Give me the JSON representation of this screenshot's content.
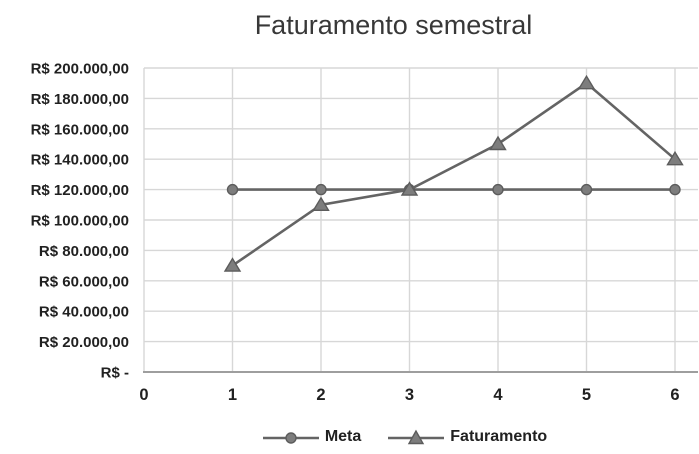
{
  "chart_data": {
    "type": "line",
    "title": "Faturamento semestral",
    "categories": [
      1,
      2,
      3,
      4,
      5,
      6
    ],
    "series": [
      {
        "name": "Meta",
        "marker": "circle",
        "values": [
          120000,
          120000,
          120000,
          120000,
          120000,
          120000
        ]
      },
      {
        "name": "Faturamento",
        "marker": "triangle",
        "values": [
          70000,
          110000,
          120000,
          150000,
          190000,
          140000
        ]
      }
    ],
    "xlabel": "",
    "ylabel": "",
    "xlim": [
      0,
      6
    ],
    "ylim": [
      0,
      200000
    ],
    "y_tick_interval": 20000,
    "y_tick_labels": [
      "R$ -",
      "R$ 20.000,00",
      "R$ 40.000,00",
      "R$ 60.000,00",
      "R$ 80.000,00",
      "R$ 100.000,00",
      "R$ 120.000,00",
      "R$ 140.000,00",
      "R$ 160.000,00",
      "R$ 180.000,00",
      "R$ 200.000,00"
    ],
    "x_tick_labels": [
      "0",
      "1",
      "2",
      "3",
      "4",
      "5",
      "6"
    ],
    "grid": true,
    "legend_position": "bottom",
    "colors": {
      "line": "#646464",
      "marker_fill": "#7d7d7d",
      "marker_stroke": "#5c5c5c",
      "gridline": "#d7d7d7",
      "axis": "#9e9e9e",
      "tick_text": "#212121",
      "title_text": "#383838",
      "background": "#ffffff"
    }
  }
}
